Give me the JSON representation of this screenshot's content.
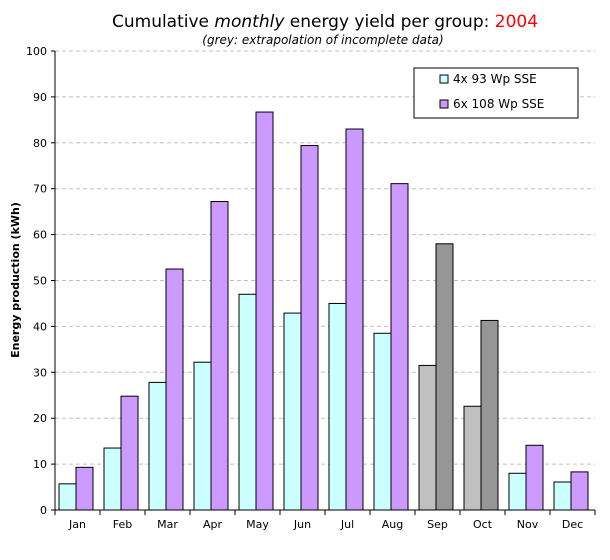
{
  "chart_data": {
    "type": "bar",
    "title_parts": {
      "prefix": "Cumulative ",
      "emphasis": "monthly",
      "middle": " energy yield per group: ",
      "year": "2004"
    },
    "subtitle": "(grey: extrapolation of incomplete data)",
    "xlabel": "",
    "ylabel": "Energy production (kWh)",
    "ylim": [
      0,
      100
    ],
    "yticks": [
      0,
      10,
      20,
      30,
      40,
      50,
      60,
      70,
      80,
      90,
      100
    ],
    "grid": true,
    "legend_position": "top-right",
    "categories": [
      "Jan",
      "Feb",
      "Mar",
      "Apr",
      "May",
      "Jun",
      "Jul",
      "Aug",
      "Sep",
      "Oct",
      "Nov",
      "Dec"
    ],
    "series": [
      {
        "name": "4x 93 Wp SSE",
        "color": "#ccffff",
        "values": [
          5.7,
          13.5,
          27.8,
          32.2,
          47.0,
          42.9,
          45.0,
          38.5,
          31.5,
          22.6,
          8.0,
          6.1
        ]
      },
      {
        "name": "6x 108 Wp SSE",
        "color": "#cc99ff",
        "values": [
          9.3,
          24.8,
          52.5,
          67.2,
          86.7,
          79.4,
          83.0,
          71.1,
          58.0,
          41.3,
          14.1,
          8.3
        ]
      }
    ],
    "extrapolated_months": [
      "Sep",
      "Oct"
    ],
    "extrapolated_colors": [
      "#c0c0c0",
      "#969696"
    ],
    "colors": {
      "year": "#ff0000",
      "grid": "#c0c0c0",
      "bar_outline": "#000000"
    }
  }
}
